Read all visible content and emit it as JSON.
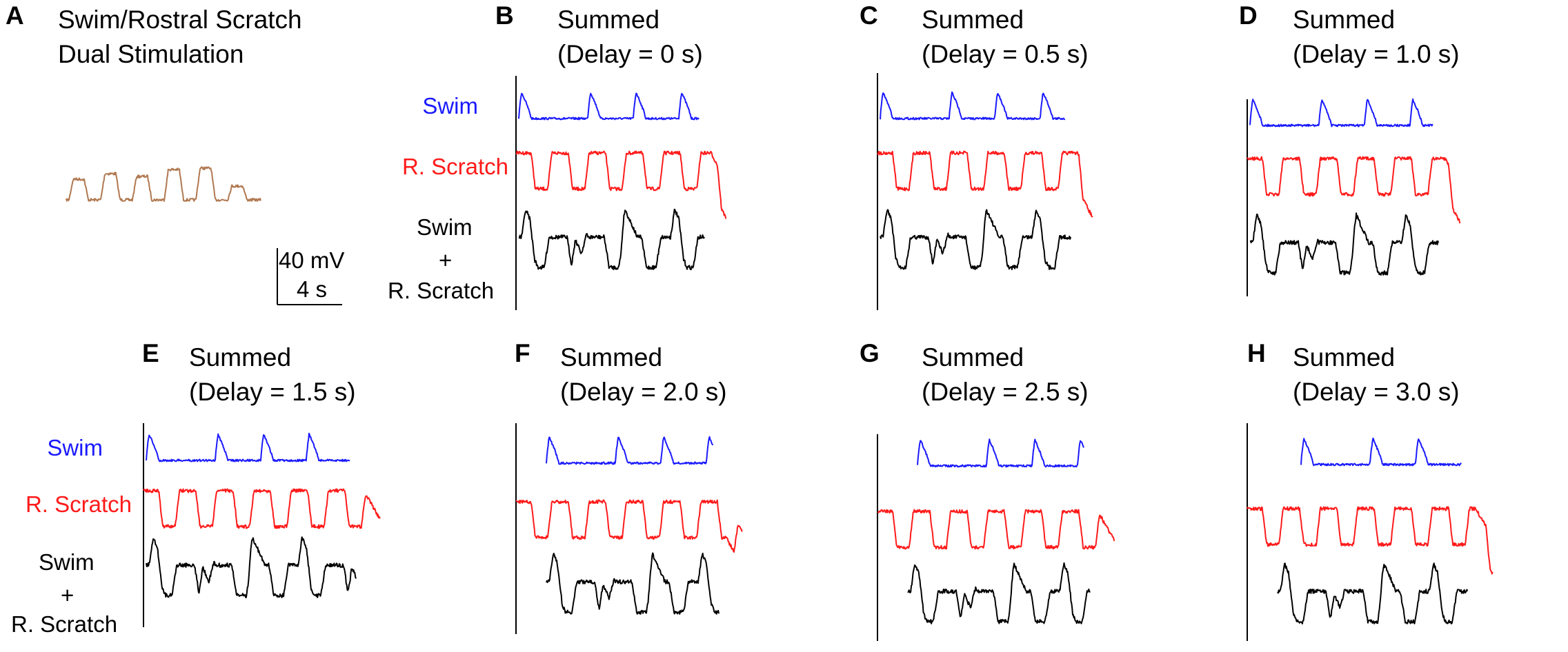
{
  "figure": {
    "panel_a": {
      "letter": "A",
      "title_line1": "Swim/Rostral Scratch",
      "title_line2": "Dual Stimulation",
      "scale_bar": {
        "voltage": "40 mV",
        "time": "4 s"
      }
    },
    "panels": [
      {
        "letter": "B",
        "title": "Summed",
        "delay": "(Delay = 0 s)"
      },
      {
        "letter": "C",
        "title": "Summed",
        "delay": "(Delay = 0.5 s)"
      },
      {
        "letter": "D",
        "title": "Summed",
        "delay": "(Delay = 1.0 s)"
      },
      {
        "letter": "E",
        "title": "Summed",
        "delay": "(Delay = 1.5 s)"
      },
      {
        "letter": "F",
        "title": "Summed",
        "delay": "(Delay = 2.0 s)"
      },
      {
        "letter": "G",
        "title": "Summed",
        "delay": "(Delay = 2.5 s)"
      },
      {
        "letter": "H",
        "title": "Summed",
        "delay": "(Delay = 3.0 s)"
      }
    ],
    "row_labels": {
      "swim": "Swim",
      "scratch": "R. Scratch",
      "sum_line1": "Swim",
      "sum_line2": "+",
      "sum_line3": "R. Scratch"
    },
    "colors": {
      "swim": "#1a1aff",
      "scratch": "#ff1a1a",
      "sum": "#000000",
      "dual": "#b07850"
    }
  }
}
